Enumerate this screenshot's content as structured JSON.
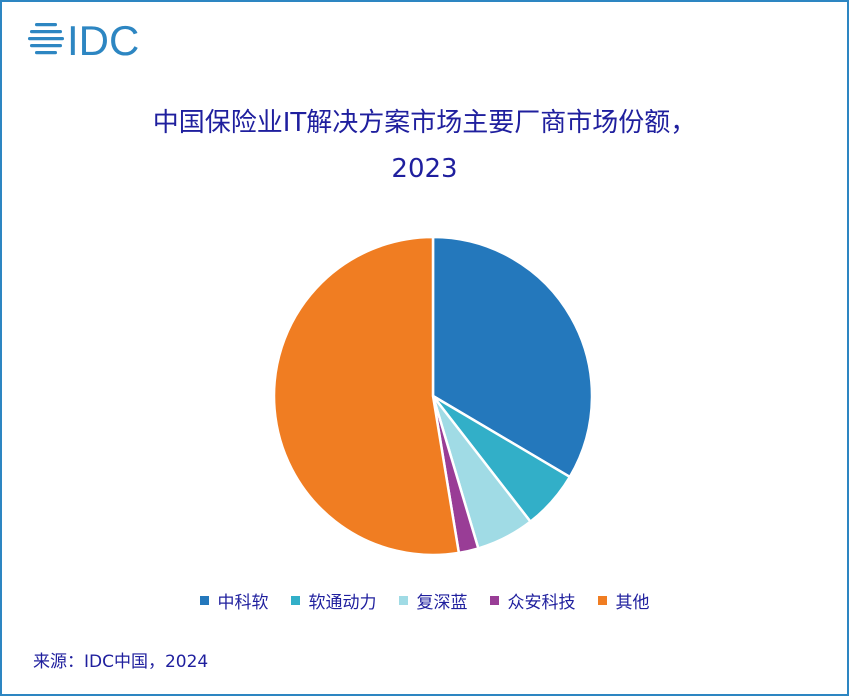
{
  "logo_text": "IDC",
  "colors": {
    "frame": "#2d86c2",
    "logo": "#2d86c2",
    "text": "#1f1f9e"
  },
  "chart_data": {
    "type": "pie",
    "title_line1": "中国保险业IT解决方案市场主要厂商市场份额，",
    "title_line2": "2023",
    "legend_position": "bottom",
    "slices": [
      {
        "label": "中科软",
        "value": 33.5,
        "color": "#2478bc"
      },
      {
        "label": "软通动力",
        "value": 6.0,
        "color": "#32afc8"
      },
      {
        "label": "复深蓝",
        "value": 5.9,
        "color": "#a0dbe5"
      },
      {
        "label": "众安科技",
        "value": 2.0,
        "color": "#993d96"
      },
      {
        "label": "其他",
        "value": 52.6,
        "color": "#f07d22"
      }
    ]
  },
  "source": "来源：IDC中国，2024"
}
